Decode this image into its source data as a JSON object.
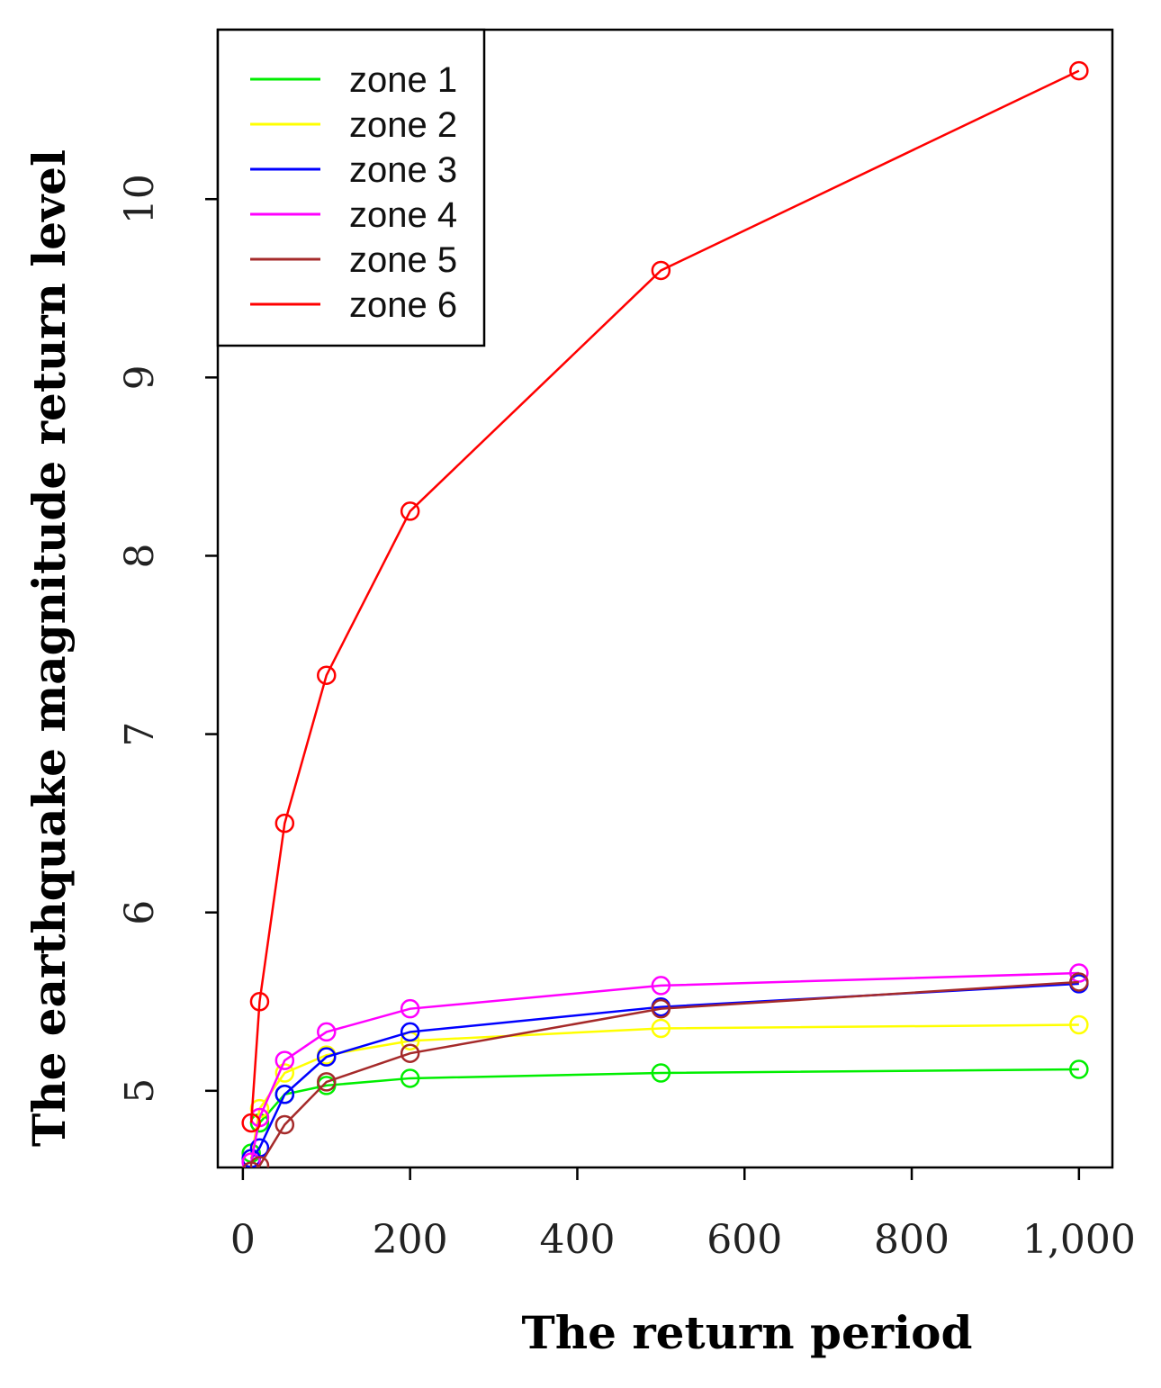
{
  "chart_data": {
    "type": "line",
    "title": "",
    "xlabel": "The return period",
    "ylabel": "The earthquake magnitude return level",
    "xlim": [
      -30,
      1040
    ],
    "ylim": [
      4.57,
      10.95
    ],
    "x": [
      10,
      20,
      50,
      100,
      200,
      500,
      1000
    ],
    "x_ticks": [
      0,
      200,
      400,
      600,
      800,
      1000
    ],
    "x_tick_labels": [
      "0",
      "200",
      "400",
      "600",
      "800",
      "1,000"
    ],
    "y_ticks": [
      5,
      6,
      7,
      8,
      9,
      10
    ],
    "y_tick_labels": [
      "5",
      "6",
      "7",
      "8",
      "9",
      "10"
    ],
    "grid": false,
    "legend_position": "top-left",
    "series": [
      {
        "name": "zone 1",
        "color": "#00ee00",
        "values": [
          4.65,
          4.82,
          4.98,
          5.03,
          5.07,
          5.1,
          5.12
        ]
      },
      {
        "name": "zone 2",
        "color": "#ffff00",
        "values": [
          4.62,
          4.9,
          5.1,
          5.2,
          5.28,
          5.35,
          5.37
        ]
      },
      {
        "name": "zone 3",
        "color": "#0000ff",
        "values": [
          4.62,
          4.68,
          4.98,
          5.19,
          5.33,
          5.47,
          5.6
        ]
      },
      {
        "name": "zone 4",
        "color": "#ff00ff",
        "values": [
          4.6,
          4.85,
          5.17,
          5.33,
          5.46,
          5.59,
          5.66
        ]
      },
      {
        "name": "zone 5",
        "color": "#a52a2a",
        "values": [
          4.55,
          4.58,
          4.81,
          5.05,
          5.21,
          5.46,
          5.61
        ]
      },
      {
        "name": "zone 6",
        "color": "#ff0000",
        "values": [
          4.82,
          5.5,
          6.5,
          7.33,
          8.25,
          9.6,
          10.72
        ]
      }
    ]
  }
}
